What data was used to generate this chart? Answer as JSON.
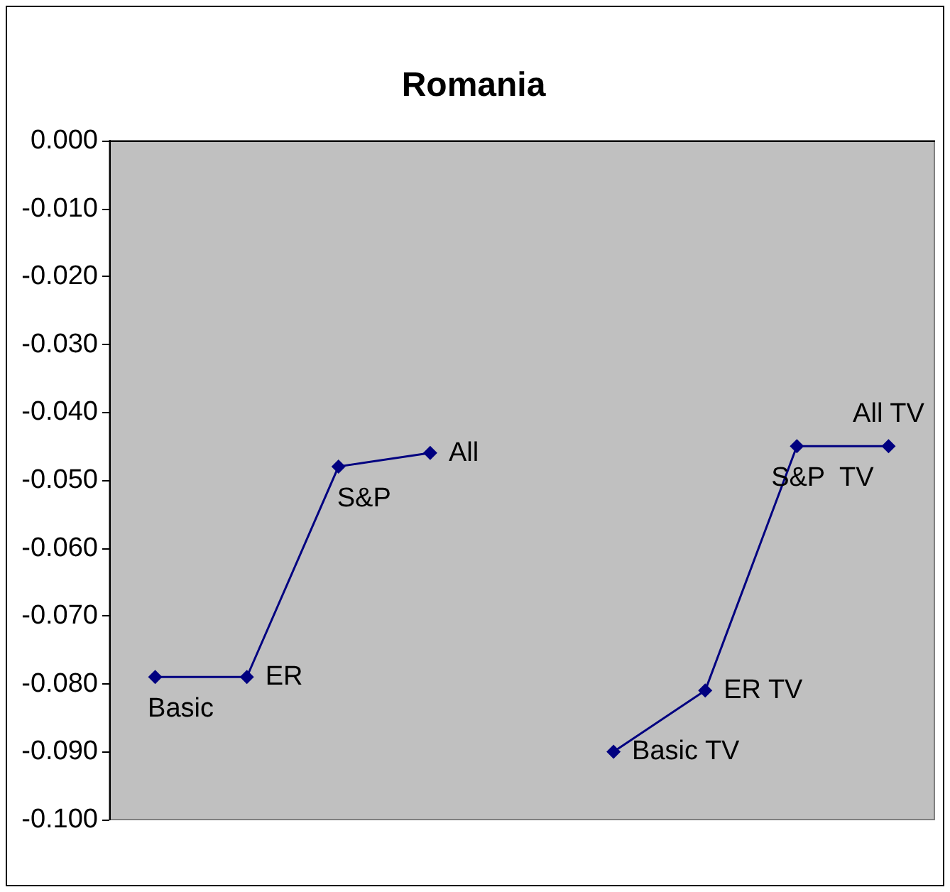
{
  "chart_data": {
    "type": "line",
    "title": "Romania",
    "categories": [
      null,
      null,
      null,
      null,
      null,
      null,
      null,
      null,
      null
    ],
    "series": [
      {
        "color": "#000080",
        "values": [
          -0.079,
          -0.079,
          -0.048,
          -0.046,
          null,
          -0.09,
          -0.081,
          -0.045,
          -0.045
        ],
        "value_labels": [
          "Basic",
          "ER",
          "S&P",
          "All",
          null,
          "Basic TV",
          "ER TV",
          "S&P  TV",
          "All TV"
        ]
      }
    ],
    "ylim": [
      -0.1,
      0
    ],
    "yticks": [
      {
        "value": 0,
        "label": "0.000"
      },
      {
        "value": -0.01,
        "label": "-0.010"
      },
      {
        "value": -0.02,
        "label": "-0.020"
      },
      {
        "value": -0.03,
        "label": "-0.030"
      },
      {
        "value": -0.04,
        "label": "-0.040"
      },
      {
        "value": -0.05,
        "label": "-0.050"
      },
      {
        "value": -0.06,
        "label": "-0.060"
      },
      {
        "value": -0.07,
        "label": "-0.070"
      },
      {
        "value": -0.08,
        "label": "-0.080"
      },
      {
        "value": -0.09,
        "label": "-0.090"
      },
      {
        "value": -0.1,
        "label": "-0.100"
      }
    ],
    "grid": false,
    "marker": "diamond",
    "line_style": "solid",
    "tick_labels": "y"
  }
}
